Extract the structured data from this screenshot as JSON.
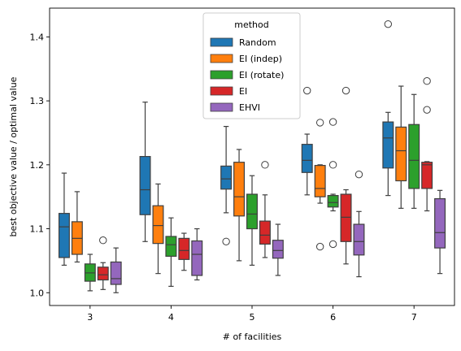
{
  "chart_data": {
    "type": "box",
    "xlabel": "# of facilities",
    "ylabel": "best objective value / optimal value",
    "ylim": [
      0.98,
      1.445
    ],
    "yticks": [
      1.0,
      1.1,
      1.2,
      1.3,
      1.4
    ],
    "ytick_labels": [
      "1.0",
      "1.1",
      "1.2",
      "1.3",
      "1.4"
    ],
    "categories": [
      "3",
      "4",
      "5",
      "6",
      "7"
    ],
    "legend": {
      "title": "method",
      "placement": "top-center"
    },
    "grid": false,
    "series": [
      {
        "name": "Random",
        "color": "#1f77b4",
        "boxes": [
          {
            "whislo": 1.043,
            "q1": 1.055,
            "med": 1.103,
            "q3": 1.124,
            "whishi": 1.187,
            "fliers": []
          },
          {
            "whislo": 1.08,
            "q1": 1.122,
            "med": 1.161,
            "q3": 1.213,
            "whishi": 1.298,
            "fliers": []
          },
          {
            "whislo": 1.125,
            "q1": 1.162,
            "med": 1.178,
            "q3": 1.198,
            "whishi": 1.26,
            "fliers": [
              1.08
            ]
          },
          {
            "whislo": 1.153,
            "q1": 1.188,
            "med": 1.207,
            "q3": 1.232,
            "whishi": 1.248,
            "fliers": [
              1.316
            ]
          },
          {
            "whislo": 1.152,
            "q1": 1.195,
            "med": 1.242,
            "q3": 1.267,
            "whishi": 1.282,
            "fliers": [
              1.42
            ]
          }
        ]
      },
      {
        "name": "EI (indep)",
        "color": "#ff7f0e",
        "boxes": [
          {
            "whislo": 1.048,
            "q1": 1.06,
            "med": 1.085,
            "q3": 1.111,
            "whishi": 1.158,
            "fliers": []
          },
          {
            "whislo": 1.03,
            "q1": 1.077,
            "med": 1.105,
            "q3": 1.136,
            "whishi": 1.17,
            "fliers": []
          },
          {
            "whislo": 1.05,
            "q1": 1.12,
            "med": 1.15,
            "q3": 1.204,
            "whishi": 1.224,
            "fliers": []
          },
          {
            "whislo": 1.14,
            "q1": 1.15,
            "med": 1.163,
            "q3": 1.199,
            "whishi": 1.2,
            "fliers": [
              1.072,
              1.266
            ]
          },
          {
            "whislo": 1.132,
            "q1": 1.175,
            "med": 1.222,
            "q3": 1.259,
            "whishi": 1.323,
            "fliers": []
          }
        ]
      },
      {
        "name": "EI (rotate)",
        "color": "#2ca02c",
        "boxes": [
          {
            "whislo": 1.003,
            "q1": 1.018,
            "med": 1.031,
            "q3": 1.045,
            "whishi": 1.06,
            "fliers": []
          },
          {
            "whislo": 1.01,
            "q1": 1.057,
            "med": 1.075,
            "q3": 1.088,
            "whishi": 1.117,
            "fliers": []
          },
          {
            "whislo": 1.043,
            "q1": 1.1,
            "med": 1.123,
            "q3": 1.154,
            "whishi": 1.183,
            "fliers": []
          },
          {
            "whislo": 1.128,
            "q1": 1.134,
            "med": 1.141,
            "q3": 1.152,
            "whishi": 1.154,
            "fliers": [
              1.076,
              1.2,
              1.267
            ]
          },
          {
            "whislo": 1.132,
            "q1": 1.163,
            "med": 1.207,
            "q3": 1.263,
            "whishi": 1.31,
            "fliers": []
          }
        ]
      },
      {
        "name": "EI",
        "color": "#d62728",
        "boxes": [
          {
            "whislo": 1.005,
            "q1": 1.02,
            "med": 1.028,
            "q3": 1.04,
            "whishi": 1.047,
            "fliers": [
              1.082
            ]
          },
          {
            "whislo": 1.035,
            "q1": 1.052,
            "med": 1.066,
            "q3": 1.085,
            "whishi": 1.093,
            "fliers": []
          },
          {
            "whislo": 1.055,
            "q1": 1.076,
            "med": 1.09,
            "q3": 1.112,
            "whishi": 1.153,
            "fliers": [
              1.2
            ]
          },
          {
            "whislo": 1.045,
            "q1": 1.08,
            "med": 1.118,
            "q3": 1.154,
            "whishi": 1.161,
            "fliers": [
              1.316
            ]
          },
          {
            "whislo": 1.128,
            "q1": 1.163,
            "med": 1.2,
            "q3": 1.204,
            "whishi": 1.205,
            "fliers": [
              1.286,
              1.331
            ]
          }
        ]
      },
      {
        "name": "EHVI",
        "color": "#9467bd",
        "boxes": [
          {
            "whislo": 1.0,
            "q1": 1.013,
            "med": 1.022,
            "q3": 1.048,
            "whishi": 1.07,
            "fliers": []
          },
          {
            "whislo": 1.02,
            "q1": 1.027,
            "med": 1.06,
            "q3": 1.081,
            "whishi": 1.1,
            "fliers": []
          },
          {
            "whislo": 1.027,
            "q1": 1.054,
            "med": 1.066,
            "q3": 1.082,
            "whishi": 1.107,
            "fliers": []
          },
          {
            "whislo": 1.025,
            "q1": 1.059,
            "med": 1.08,
            "q3": 1.107,
            "whishi": 1.127,
            "fliers": [
              1.185
            ]
          },
          {
            "whislo": 1.03,
            "q1": 1.07,
            "med": 1.094,
            "q3": 1.147,
            "whishi": 1.16,
            "fliers": []
          }
        ]
      }
    ]
  }
}
